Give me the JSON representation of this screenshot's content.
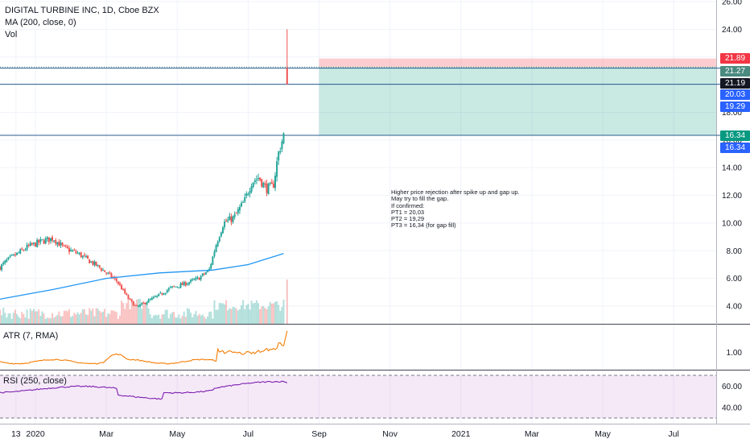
{
  "legend": {
    "symbol_line": "DIGITAL TURBINE INC, 1D, Cboe BZX",
    "ma_label": "MA (200, close, 0)",
    "vol_label": "Vol"
  },
  "atr_label": "ATR (7, RMA)",
  "rsi_label": "RSI (250, close)",
  "annotation": [
    "Higher price rejection after spike up and gap up.",
    "May try to fill the gap.",
    "If confirmed:",
    "PT1 = 20,03",
    "PT2 = 19,29",
    "PT3 = 16,34 (for gap fill)"
  ],
  "price_tags": [
    {
      "label": "21.89",
      "value": 21.89,
      "color": "#f23645"
    },
    {
      "label": "21.27",
      "value": 21.27,
      "color": "#4a8a7f"
    },
    {
      "label": "21.19",
      "value": 21.19,
      "color": "#131722"
    },
    {
      "label": "20.03",
      "value": 20.03,
      "color": "#2962ff"
    },
    {
      "label": "19.29",
      "value": 19.29,
      "color": "#2962ff"
    },
    {
      "label": "16.34",
      "value": 16.34,
      "color": "#089981"
    },
    {
      "label": "16.34",
      "value": 16.34,
      "color": "#2962ff"
    }
  ],
  "chart_data": {
    "type": "candlestick",
    "price_axis": {
      "range": [
        3,
        26
      ],
      "ticks": [
        "26.00",
        "24.00",
        "22.00",
        "20.00",
        "18.00",
        "16.00",
        "14.00",
        "12.00",
        "10.00",
        "8.00",
        "6.00",
        "4.00"
      ],
      "tick_values": [
        26,
        24,
        22,
        20,
        18,
        16,
        14,
        12,
        10,
        8,
        6,
        4
      ]
    },
    "atr_axis": {
      "range": [
        0.5,
        1.8
      ],
      "ticks": [
        "1.00"
      ],
      "tick_values": [
        1.0
      ]
    },
    "rsi_axis": {
      "range": [
        30,
        70
      ],
      "ticks": [
        "60.00",
        "40.00"
      ],
      "tick_values": [
        60,
        40
      ],
      "band": [
        30,
        70
      ]
    },
    "time_axis_labels": [
      "13",
      "2020",
      "Mar",
      "May",
      "Jul",
      "Sep",
      "Nov",
      "2021",
      "Mar",
      "May",
      "Jul"
    ],
    "time_axis_months": [
      -0.55,
      0,
      2,
      4,
      6,
      8,
      10,
      12,
      14,
      16,
      18
    ],
    "x_range_months": [
      -1.0,
      19.2
    ],
    "close_anchors": [
      [
        -1.0,
        6.8
      ],
      [
        -0.8,
        7.3
      ],
      [
        -0.5,
        7.8
      ],
      [
        -0.2,
        8.3
      ],
      [
        0.2,
        8.7
      ],
      [
        0.5,
        8.9
      ],
      [
        0.8,
        8.2
      ],
      [
        1.2,
        7.8
      ],
      [
        1.5,
        7.3
      ],
      [
        1.8,
        6.8
      ],
      [
        2.0,
        6.4
      ],
      [
        2.3,
        5.8
      ],
      [
        2.6,
        4.6
      ],
      [
        2.85,
        3.9
      ],
      [
        3.2,
        4.4
      ],
      [
        3.5,
        4.8
      ],
      [
        3.8,
        5.3
      ],
      [
        4.2,
        5.6
      ],
      [
        4.6,
        6.0
      ],
      [
        4.9,
        6.6
      ],
      [
        5.1,
        8.5
      ],
      [
        5.3,
        10.0
      ],
      [
        5.6,
        10.4
      ],
      [
        5.9,
        11.6
      ],
      [
        6.1,
        13.0
      ],
      [
        6.3,
        13.3
      ],
      [
        6.5,
        12.5
      ],
      [
        6.7,
        12.6
      ],
      [
        6.85,
        15.0
      ],
      [
        7.0,
        16.34
      ]
    ],
    "last_bar": {
      "open": 21.19,
      "high": 24.0,
      "low": 20.0,
      "close": 20.03
    },
    "ma_200": [
      [
        -1.0,
        4.5
      ],
      [
        0.5,
        5.2
      ],
      [
        2.0,
        6.0
      ],
      [
        3.5,
        6.4
      ],
      [
        5.0,
        6.6
      ],
      [
        6.0,
        7.0
      ],
      [
        7.0,
        7.8
      ]
    ],
    "horizontal_lines": [
      21.19,
      20.03,
      16.34
    ],
    "dotted_line": 21.27,
    "position": {
      "entry": 21.27,
      "stop": 21.89,
      "target": 16.34,
      "x_start_month": 8.0
    }
  }
}
